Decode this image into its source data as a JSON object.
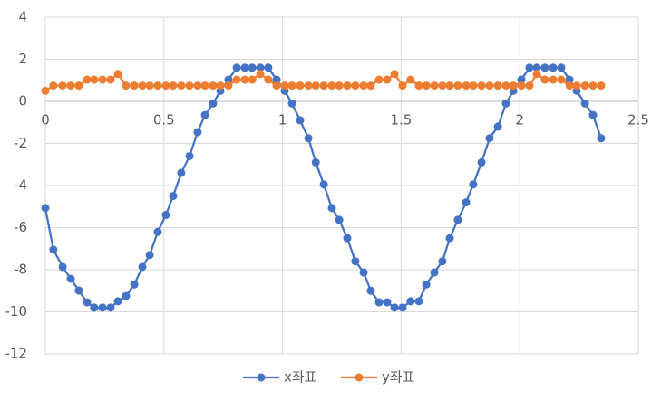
{
  "chart_data": {
    "type": "scatter-line",
    "x": [
      0,
      0.034,
      0.073,
      0.107,
      0.141,
      0.176,
      0.206,
      0.241,
      0.275,
      0.306,
      0.34,
      0.375,
      0.409,
      0.44,
      0.474,
      0.508,
      0.539,
      0.573,
      0.608,
      0.642,
      0.673,
      0.707,
      0.738,
      0.772,
      0.807,
      0.841,
      0.872,
      0.906,
      0.94,
      0.975,
      1.009,
      1.04,
      1.074,
      1.109,
      1.14,
      1.174,
      1.208,
      1.239,
      1.273,
      1.307,
      1.342,
      1.372,
      1.407,
      1.441,
      1.472,
      1.506,
      1.54,
      1.575,
      1.606,
      1.64,
      1.674,
      1.705,
      1.739,
      1.774,
      1.804,
      1.839,
      1.873,
      1.908,
      1.942,
      1.973,
      2.007,
      2.041,
      2.072,
      2.106,
      2.141,
      2.175,
      2.21,
      2.24,
      2.275,
      2.309,
      2.343
    ],
    "series": [
      {
        "name": "x좌표",
        "color": "#4472c4",
        "values": [
          -5.07,
          -7.05,
          -7.87,
          -8.43,
          -8.99,
          -9.55,
          -9.8,
          -9.8,
          -9.8,
          -9.5,
          -9.25,
          -8.7,
          -7.87,
          -7.3,
          -6.2,
          -5.4,
          -4.5,
          -3.4,
          -2.6,
          -1.46,
          -0.65,
          -0.1,
          0.5,
          1.03,
          1.6,
          1.6,
          1.6,
          1.6,
          1.6,
          1.03,
          0.5,
          -0.1,
          -0.9,
          -1.75,
          -2.9,
          -3.95,
          -5.07,
          -5.63,
          -6.5,
          -7.6,
          -8.13,
          -9.0,
          -9.55,
          -9.55,
          -9.8,
          -9.8,
          -9.5,
          -9.5,
          -8.7,
          -8.13,
          -7.6,
          -6.5,
          -5.63,
          -4.8,
          -3.95,
          -2.9,
          -1.75,
          -1.2,
          -0.1,
          0.5,
          1.03,
          1.6,
          1.6,
          1.6,
          1.6,
          1.6,
          1.03,
          0.5,
          -0.1,
          -0.65,
          -1.75
        ]
      },
      {
        "name": "y좌표",
        "color": "#ed7d31",
        "values": [
          0.5,
          0.75,
          0.75,
          0.75,
          0.75,
          1.03,
          1.03,
          1.03,
          1.03,
          1.3,
          0.75,
          0.75,
          0.75,
          0.75,
          0.75,
          0.75,
          0.75,
          0.75,
          0.75,
          0.75,
          0.75,
          0.75,
          0.75,
          0.75,
          1.03,
          1.03,
          1.03,
          1.3,
          1.03,
          0.75,
          0.75,
          0.75,
          0.75,
          0.75,
          0.75,
          0.75,
          0.75,
          0.75,
          0.75,
          0.75,
          0.75,
          0.75,
          1.03,
          1.03,
          1.3,
          0.75,
          1.03,
          0.75,
          0.75,
          0.75,
          0.75,
          0.75,
          0.75,
          0.75,
          0.75,
          0.75,
          0.75,
          0.75,
          0.75,
          0.75,
          0.75,
          0.75,
          1.3,
          1.03,
          1.03,
          1.03,
          0.75,
          0.75,
          0.75,
          0.75,
          0.75
        ]
      }
    ],
    "xlim": [
      0,
      2.5
    ],
    "xticks": [
      0,
      0.5,
      1,
      1.5,
      2,
      2.5
    ],
    "ylim": [
      -12,
      4
    ],
    "yticks": [
      -12,
      -10,
      -8,
      -6,
      -4,
      -2,
      0,
      2,
      4
    ],
    "grid": true
  }
}
